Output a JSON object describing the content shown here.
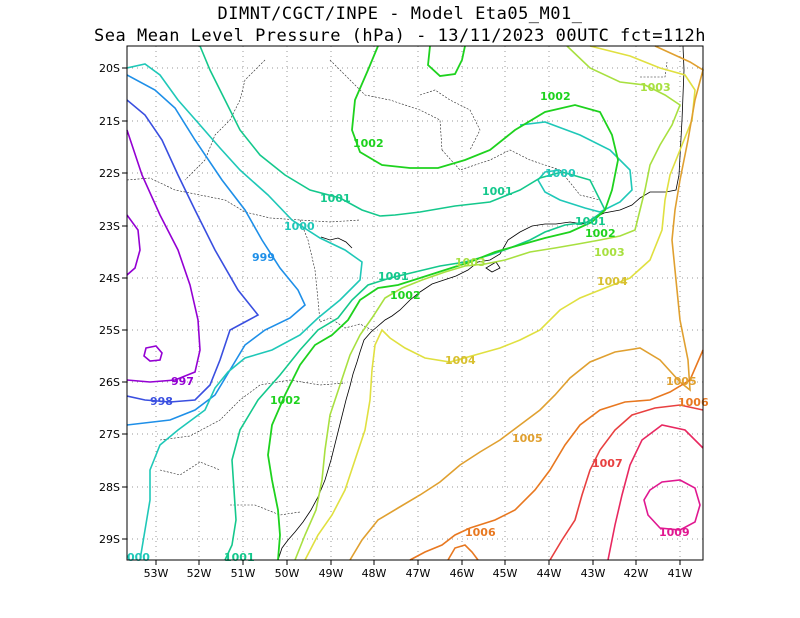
{
  "header": {
    "title_line1": "DIMNT/CGCT/INPE -  Model Eta05_M01_",
    "title_line2": "Sea Mean Level Pressure (hPa) - 13/11/2023 00UTC fct=112h"
  },
  "axes": {
    "lat_labels": [
      "20S",
      "21S",
      "22S",
      "23S",
      "24S",
      "25S",
      "26S",
      "27S",
      "28S",
      "29S"
    ],
    "lon_labels": [
      "53W",
      "52W",
      "51W",
      "50W",
      "49W",
      "48W",
      "47W",
      "46W",
      "45W",
      "44W",
      "43W",
      "42W",
      "41W"
    ]
  },
  "colors": {
    "c997": "#9400d3",
    "c998": "#3a4fe0",
    "c999": "#1e8fe8",
    "c1000": "#1fc8b8",
    "c1001": "#14c88c",
    "c1002": "#1ed21e",
    "c1003": "#a8e040",
    "c1004": "#e0e040",
    "c1005": "#e0a030",
    "c1006": "#e87820",
    "c1007": "#e84040",
    "c1009": "#e01890"
  },
  "contour_labels": [
    {
      "text": "997"
    },
    {
      "text": "998"
    },
    {
      "text": "999"
    },
    {
      "text": "1000"
    },
    {
      "text": "1000"
    },
    {
      "text": "000"
    },
    {
      "text": "1001"
    },
    {
      "text": "1001"
    },
    {
      "text": "1001"
    },
    {
      "text": "1001"
    },
    {
      "text": "1001"
    },
    {
      "text": "1002"
    },
    {
      "text": "1002"
    },
    {
      "text": "1002"
    },
    {
      "text": "1002"
    },
    {
      "text": "1002"
    },
    {
      "text": "1003"
    },
    {
      "text": "1003"
    },
    {
      "text": "1003"
    },
    {
      "text": "1004"
    },
    {
      "text": "1004"
    },
    {
      "text": "1005"
    },
    {
      "text": "1005"
    },
    {
      "text": "1006"
    },
    {
      "text": "1006"
    },
    {
      "text": "1007"
    },
    {
      "text": "1009"
    }
  ]
}
